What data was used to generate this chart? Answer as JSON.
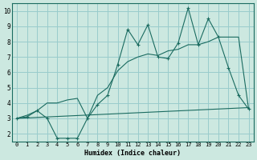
{
  "xlabel": "Humidex (Indice chaleur)",
  "bg_color": "#cce8e0",
  "grid_color": "#99cccc",
  "line_color": "#1a6b60",
  "xlim": [
    -0.5,
    23.5
  ],
  "ylim": [
    1.5,
    10.5
  ],
  "xticks": [
    0,
    1,
    2,
    3,
    4,
    5,
    6,
    7,
    8,
    9,
    10,
    11,
    12,
    13,
    14,
    15,
    16,
    17,
    18,
    19,
    20,
    21,
    22,
    23
  ],
  "yticks": [
    2,
    3,
    4,
    5,
    6,
    7,
    8,
    9,
    10
  ],
  "series1_x": [
    0,
    1,
    2,
    3,
    4,
    5,
    6,
    7,
    8,
    9,
    10,
    11,
    12,
    13,
    14,
    15,
    16,
    17,
    18,
    19,
    20,
    21,
    22,
    23
  ],
  "series1_y": [
    3.0,
    3.1,
    3.5,
    3.0,
    1.7,
    1.7,
    1.7,
    3.0,
    3.9,
    4.5,
    6.5,
    8.8,
    7.8,
    9.1,
    7.0,
    6.9,
    7.9,
    10.2,
    7.8,
    9.5,
    8.3,
    6.3,
    4.5,
    3.6
  ],
  "series2_x": [
    0,
    23
  ],
  "series2_y": [
    3.0,
    3.7
  ],
  "series3_x": [
    0,
    1,
    2,
    3,
    4,
    5,
    6,
    7,
    8,
    9,
    10,
    11,
    12,
    13,
    14,
    15,
    16,
    17,
    18,
    19,
    20,
    21,
    22,
    23
  ],
  "series3_y": [
    3.0,
    3.2,
    3.5,
    4.0,
    4.0,
    4.2,
    4.3,
    3.0,
    4.5,
    5.0,
    6.1,
    6.7,
    7.0,
    7.2,
    7.1,
    7.4,
    7.5,
    7.8,
    7.8,
    8.0,
    8.3,
    8.3,
    8.3,
    3.6
  ]
}
